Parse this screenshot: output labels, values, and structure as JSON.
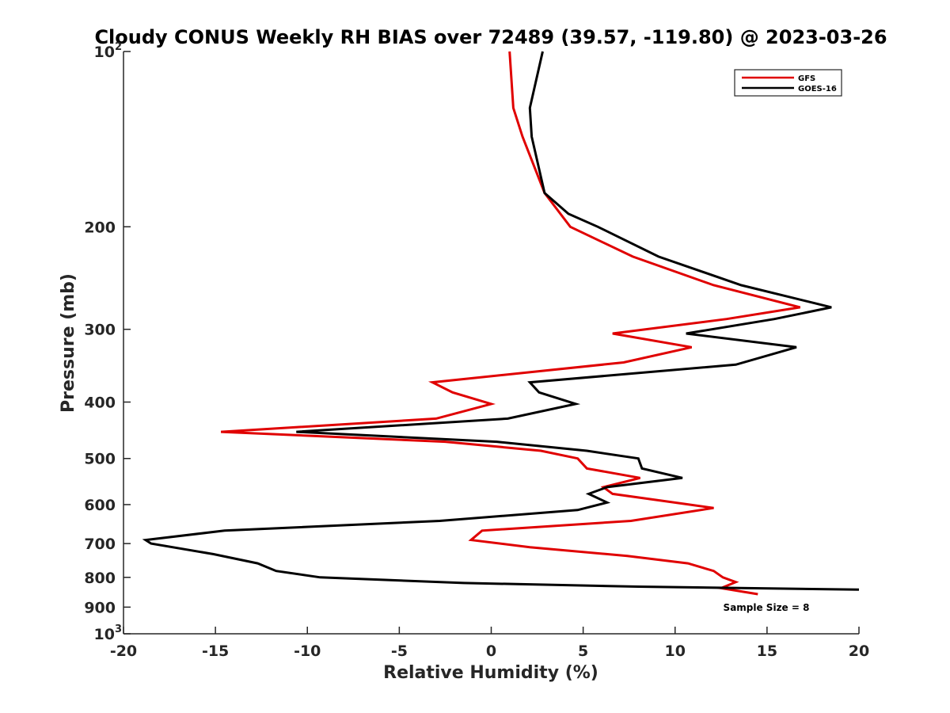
{
  "chart_data": {
    "type": "line",
    "title": "Cloudy CONUS Weekly RH BIAS over 72489 (39.57, -119.80) @ 2023-03-26",
    "xlabel": "Relative Humidity (%)",
    "ylabel": "Pressure (mb)",
    "xlim": [
      -20,
      20
    ],
    "ylim": [
      100,
      1000
    ],
    "yscale": "log",
    "y_reversed": true,
    "x_ticks": [
      {
        "value": -20,
        "label": "-20"
      },
      {
        "value": -15,
        "label": "-15"
      },
      {
        "value": -10,
        "label": "-10"
      },
      {
        "value": -5,
        "label": "-5"
      },
      {
        "value": 0,
        "label": "0"
      },
      {
        "value": 5,
        "label": "5"
      },
      {
        "value": 10,
        "label": "10"
      },
      {
        "value": 15,
        "label": "15"
      },
      {
        "value": 20,
        "label": "20"
      }
    ],
    "y_ticks": [
      {
        "value": 100,
        "label": "10",
        "sup": "2"
      },
      {
        "value": 200,
        "label": "200"
      },
      {
        "value": 300,
        "label": "300"
      },
      {
        "value": 400,
        "label": "400"
      },
      {
        "value": 500,
        "label": "500"
      },
      {
        "value": 600,
        "label": "600"
      },
      {
        "value": 700,
        "label": "700"
      },
      {
        "value": 800,
        "label": "800"
      },
      {
        "value": 900,
        "label": "900"
      },
      {
        "value": 1000,
        "label": "10",
        "sup": "3"
      }
    ],
    "grid": false,
    "legend_position": "top-right",
    "annotation": "Sample Size = 8",
    "series": [
      {
        "name": "GFS",
        "color": "#e00000",
        "points": [
          [
            1.0,
            100
          ],
          [
            1.2,
            125
          ],
          [
            1.7,
            140
          ],
          [
            2.9,
            175
          ],
          [
            4.3,
            200
          ],
          [
            7.7,
            225
          ],
          [
            12.1,
            252
          ],
          [
            16.8,
            275
          ],
          [
            12.8,
            288
          ],
          [
            6.6,
            305
          ],
          [
            10.9,
            322
          ],
          [
            7.2,
            342
          ],
          [
            -3.2,
            370
          ],
          [
            -2.1,
            385
          ],
          [
            0.0,
            403
          ],
          [
            -3.0,
            427
          ],
          [
            -14.7,
            450
          ],
          [
            -2.5,
            468
          ],
          [
            2.7,
            485
          ],
          [
            4.7,
            500
          ],
          [
            5.2,
            520
          ],
          [
            8.1,
            540
          ],
          [
            6.1,
            560
          ],
          [
            6.6,
            575
          ],
          [
            12.1,
            608
          ],
          [
            7.6,
            640
          ],
          [
            -0.5,
            665
          ],
          [
            -1.1,
            690
          ],
          [
            2.1,
            710
          ],
          [
            7.4,
            735
          ],
          [
            10.7,
            757
          ],
          [
            12.1,
            780
          ],
          [
            12.6,
            800
          ],
          [
            13.3,
            815
          ],
          [
            12.5,
            835
          ],
          [
            14.5,
            855
          ]
        ]
      },
      {
        "name": "GOES-16",
        "color": "#000000",
        "points": [
          [
            2.8,
            100
          ],
          [
            2.1,
            125
          ],
          [
            2.2,
            140
          ],
          [
            2.9,
            175
          ],
          [
            4.2,
            190
          ],
          [
            5.8,
            200
          ],
          [
            9.1,
            225
          ],
          [
            13.6,
            252
          ],
          [
            18.5,
            275
          ],
          [
            15.4,
            288
          ],
          [
            10.6,
            305
          ],
          [
            16.6,
            322
          ],
          [
            13.3,
            345
          ],
          [
            2.1,
            370
          ],
          [
            2.6,
            385
          ],
          [
            4.6,
            403
          ],
          [
            0.9,
            427
          ],
          [
            -10.6,
            450
          ],
          [
            0.3,
            468
          ],
          [
            5.2,
            485
          ],
          [
            8.0,
            500
          ],
          [
            8.2,
            520
          ],
          [
            10.4,
            540
          ],
          [
            6.3,
            560
          ],
          [
            5.3,
            575
          ],
          [
            6.3,
            595
          ],
          [
            4.7,
            613
          ],
          [
            -2.8,
            640
          ],
          [
            -14.5,
            665
          ],
          [
            -18.8,
            690
          ],
          [
            -18.5,
            700
          ],
          [
            -15.1,
            730
          ],
          [
            -12.7,
            757
          ],
          [
            -11.7,
            780
          ],
          [
            -9.3,
            800
          ],
          [
            -1.5,
            818
          ],
          [
            8.0,
            830
          ],
          [
            20.0,
            840
          ]
        ]
      }
    ]
  }
}
